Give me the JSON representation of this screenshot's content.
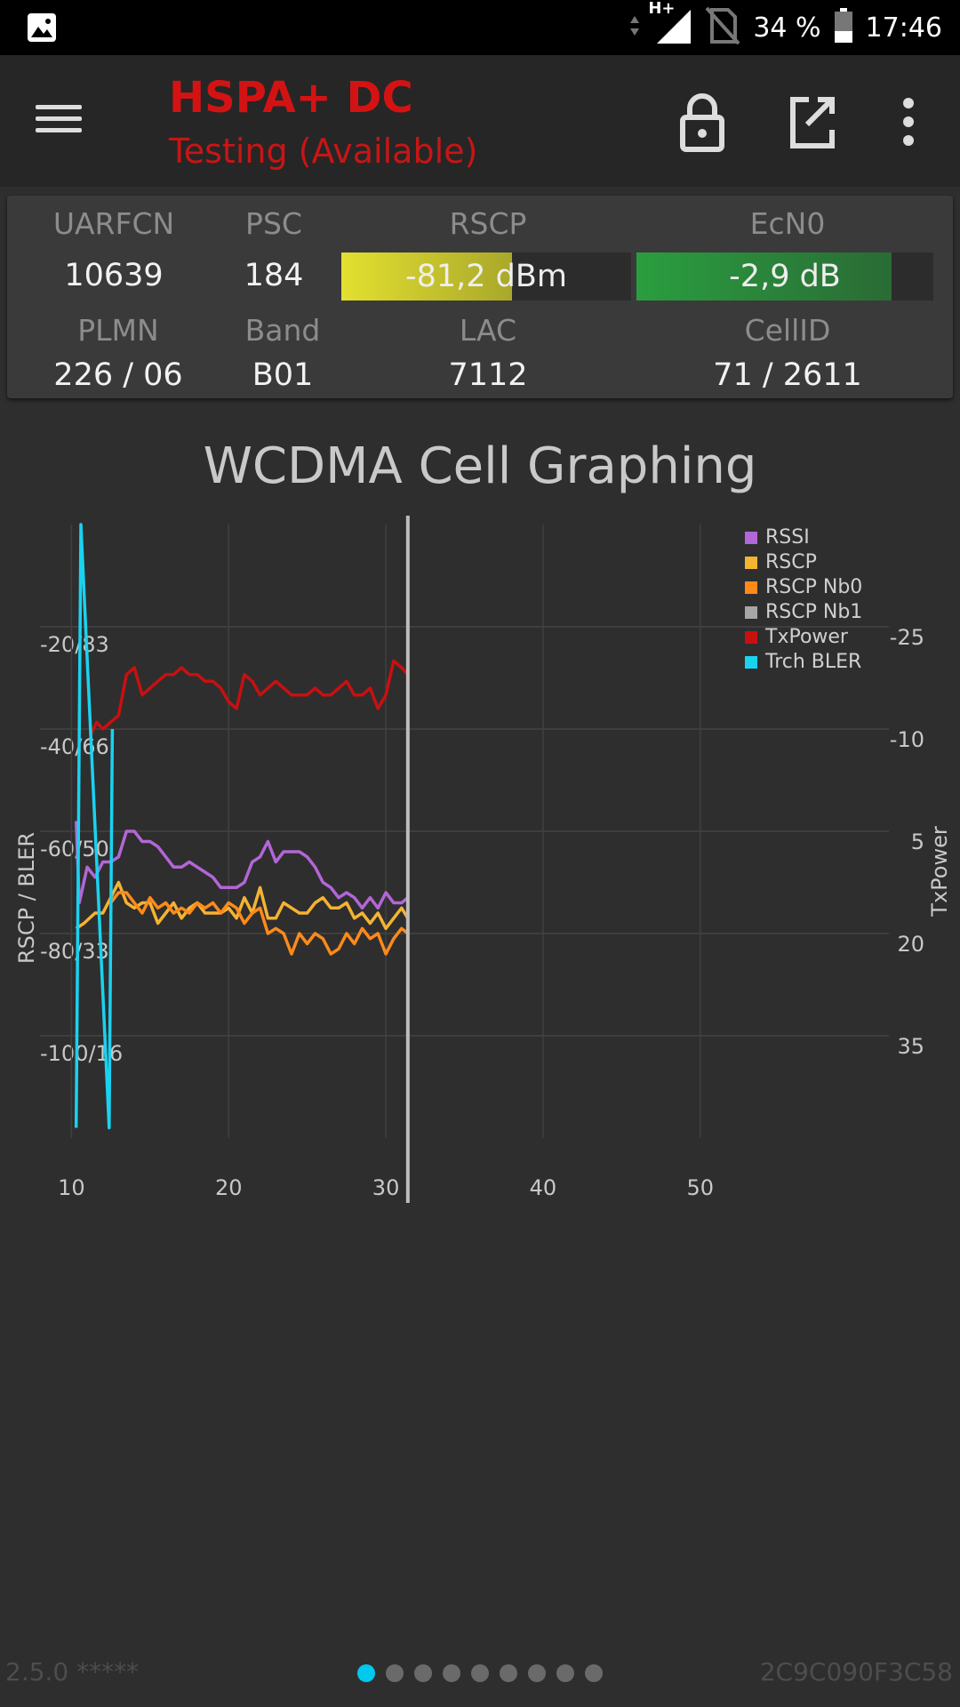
{
  "status_bar": {
    "network": "H+",
    "battery": "34 %",
    "time": "17:46"
  },
  "app_bar": {
    "title": "HSPA+ DC",
    "subtitle": "Testing (Available)",
    "icons": [
      "menu-icon",
      "lock-icon",
      "open-external-icon",
      "more-vert-icon"
    ]
  },
  "cell_panel": {
    "labels": {
      "uarfcn": "UARFCN",
      "psc": "PSC",
      "rscp": "RSCP",
      "ecn0": "EcN0",
      "plmn": "PLMN",
      "band": "Band",
      "lac": "LAC",
      "cellid": "CellID"
    },
    "values": {
      "uarfcn": "10639",
      "psc": "184",
      "rscp": "-81,2 dBm",
      "ecn0": "-2,9 dB",
      "plmn": "226 / 06",
      "band": "B01",
      "lac": "7112",
      "cellid": "71 / 2611"
    },
    "rscp_fill": 0.59,
    "ecn0_fill": 0.86,
    "colors": {
      "rscp_from": "#e3e030",
      "rscp_to": "#a9a82a",
      "ecn0_from": "#2a9e3f",
      "ecn0_to": "#2a6b35"
    }
  },
  "chart_title": "WCDMA Cell Graphing",
  "chart_data": {
    "type": "line",
    "xlim": [
      8,
      62
    ],
    "x_ticks": [
      10,
      20,
      30,
      40,
      50
    ],
    "y_left_label": "RSCP / BLER",
    "y_left_ticks": [
      "-20/83",
      "-40/66",
      "-60/50",
      "-80/33",
      "-100/16"
    ],
    "y_left_values": [
      -20,
      -40,
      -60,
      -80,
      -100
    ],
    "y_left_range": [
      -120,
      0
    ],
    "y_right_label": "TxPower",
    "y_right_ticks": [
      "-25",
      "-10",
      "5",
      "20",
      "35"
    ],
    "y_right_values": [
      -25,
      -10,
      5,
      20,
      35
    ],
    "legend_position": "top-right",
    "cursor_x": 31.4,
    "series": [
      {
        "name": "RSSI",
        "color": "#b366d6",
        "axis": "left",
        "points": [
          [
            10.3,
            -58
          ],
          [
            10.5,
            -74
          ],
          [
            11,
            -67
          ],
          [
            11.5,
            -69
          ],
          [
            12,
            -66
          ],
          [
            12.5,
            -66
          ],
          [
            13,
            -65
          ],
          [
            13.5,
            -60
          ],
          [
            14,
            -60
          ],
          [
            14.5,
            -62
          ],
          [
            15,
            -62
          ],
          [
            15.5,
            -63
          ],
          [
            16,
            -65
          ],
          [
            16.5,
            -67
          ],
          [
            17,
            -67
          ],
          [
            17.5,
            -66
          ],
          [
            18,
            -67
          ],
          [
            18.5,
            -68
          ],
          [
            19,
            -69
          ],
          [
            19.5,
            -71
          ],
          [
            20,
            -71
          ],
          [
            20.5,
            -71
          ],
          [
            21,
            -70
          ],
          [
            21.5,
            -66
          ],
          [
            22,
            -65
          ],
          [
            22.5,
            -62
          ],
          [
            23,
            -66
          ],
          [
            23.5,
            -64
          ],
          [
            24,
            -64
          ],
          [
            24.5,
            -64
          ],
          [
            25,
            -65
          ],
          [
            25.5,
            -67
          ],
          [
            26,
            -70
          ],
          [
            26.5,
            -71
          ],
          [
            27,
            -73
          ],
          [
            27.5,
            -72
          ],
          [
            28,
            -73
          ],
          [
            28.5,
            -75
          ],
          [
            29,
            -73
          ],
          [
            29.5,
            -75
          ],
          [
            30,
            -72
          ],
          [
            30.5,
            -74
          ],
          [
            31,
            -74
          ],
          [
            31.4,
            -73
          ]
        ]
      },
      {
        "name": "RSCP",
        "color": "#f5b332",
        "axis": "left",
        "points": [
          [
            10.3,
            -79
          ],
          [
            10.8,
            -78
          ],
          [
            11.5,
            -76
          ],
          [
            12,
            -76
          ],
          [
            12.5,
            -73
          ],
          [
            13,
            -70
          ],
          [
            13.5,
            -74
          ],
          [
            14,
            -75
          ],
          [
            14.5,
            -74
          ],
          [
            15,
            -74
          ],
          [
            15.5,
            -78
          ],
          [
            16,
            -76
          ],
          [
            16.5,
            -74
          ],
          [
            17,
            -77
          ],
          [
            17.5,
            -75
          ],
          [
            18,
            -74
          ],
          [
            18.5,
            -76
          ],
          [
            19,
            -76
          ],
          [
            19.5,
            -76
          ],
          [
            20,
            -75
          ],
          [
            20.5,
            -77
          ],
          [
            21,
            -73
          ],
          [
            21.5,
            -76
          ],
          [
            22,
            -71
          ],
          [
            22.5,
            -77
          ],
          [
            23,
            -77
          ],
          [
            23.5,
            -74
          ],
          [
            24,
            -75
          ],
          [
            24.5,
            -76
          ],
          [
            25,
            -76
          ],
          [
            25.5,
            -74
          ],
          [
            26,
            -73
          ],
          [
            26.5,
            -75
          ],
          [
            27,
            -75
          ],
          [
            27.5,
            -74
          ],
          [
            28,
            -77
          ],
          [
            28.5,
            -76
          ],
          [
            29,
            -78
          ],
          [
            29.5,
            -76
          ],
          [
            30,
            -79
          ],
          [
            30.5,
            -77
          ],
          [
            31,
            -75
          ],
          [
            31.4,
            -77
          ]
        ]
      },
      {
        "name": "RSCP Nb0",
        "color": "#ff8a1a",
        "axis": "left",
        "points": [
          [
            12.5,
            -74
          ],
          [
            13,
            -72
          ],
          [
            13.5,
            -72
          ],
          [
            14,
            -74
          ],
          [
            14.5,
            -76
          ],
          [
            15,
            -73
          ],
          [
            15.5,
            -75
          ],
          [
            16,
            -74
          ],
          [
            16.5,
            -76
          ],
          [
            17,
            -75
          ],
          [
            17.5,
            -76
          ],
          [
            18,
            -74
          ],
          [
            18.5,
            -75
          ],
          [
            19,
            -74
          ],
          [
            19.5,
            -76
          ],
          [
            20,
            -74
          ],
          [
            20.5,
            -75
          ],
          [
            21,
            -78
          ],
          [
            21.5,
            -76
          ],
          [
            22,
            -75
          ],
          [
            22.5,
            -80
          ],
          [
            23,
            -79
          ],
          [
            23.5,
            -80
          ],
          [
            24,
            -84
          ],
          [
            24.5,
            -80
          ],
          [
            25,
            -82
          ],
          [
            25.5,
            -80
          ],
          [
            26,
            -81
          ],
          [
            26.5,
            -84
          ],
          [
            27,
            -83
          ],
          [
            27.5,
            -80
          ],
          [
            28,
            -82
          ],
          [
            28.5,
            -79
          ],
          [
            29,
            -81
          ],
          [
            29.5,
            -80
          ],
          [
            30,
            -84
          ],
          [
            30.5,
            -81
          ],
          [
            31,
            -79
          ],
          [
            31.4,
            -80
          ]
        ]
      },
      {
        "name": "RSCP Nb1",
        "color": "#a6a6a6",
        "axis": "left",
        "points": []
      },
      {
        "name": "TxPower",
        "color": "#c81010",
        "axis": "right",
        "points": [
          [
            11.2,
            -9
          ],
          [
            11.6,
            -11
          ],
          [
            12,
            -10
          ],
          [
            12.5,
            -11
          ],
          [
            13,
            -12
          ],
          [
            13.5,
            -18
          ],
          [
            14,
            -19
          ],
          [
            14.5,
            -15
          ],
          [
            15,
            -16
          ],
          [
            15.5,
            -17
          ],
          [
            16,
            -18
          ],
          [
            16.5,
            -18
          ],
          [
            17,
            -19
          ],
          [
            17.5,
            -18
          ],
          [
            18,
            -18
          ],
          [
            18.5,
            -17
          ],
          [
            19,
            -17
          ],
          [
            19.5,
            -16
          ],
          [
            20,
            -14
          ],
          [
            20.5,
            -13
          ],
          [
            21,
            -18
          ],
          [
            21.5,
            -17
          ],
          [
            22,
            -15
          ],
          [
            22.5,
            -16
          ],
          [
            23,
            -17
          ],
          [
            23.5,
            -16
          ],
          [
            24,
            -15
          ],
          [
            24.5,
            -15
          ],
          [
            25,
            -15
          ],
          [
            25.5,
            -16
          ],
          [
            26,
            -15
          ],
          [
            26.5,
            -15
          ],
          [
            27,
            -16
          ],
          [
            27.5,
            -17
          ],
          [
            28,
            -15
          ],
          [
            28.5,
            -15
          ],
          [
            29,
            -16
          ],
          [
            29.5,
            -13
          ],
          [
            30,
            -15
          ],
          [
            30.5,
            -20
          ],
          [
            31,
            -19
          ],
          [
            31.4,
            -18
          ]
        ]
      },
      {
        "name": "Trch BLER",
        "color": "#1ad2f0",
        "axis": "left",
        "points": [
          [
            10.3,
            -118
          ],
          [
            10.6,
            0
          ],
          [
            12.4,
            -118
          ],
          [
            12.6,
            -40
          ]
        ]
      }
    ]
  },
  "footer": {
    "version": "2.5.0 *****",
    "device_id": "2C9C090F3C58",
    "page_count": 9,
    "active_page": 0
  }
}
